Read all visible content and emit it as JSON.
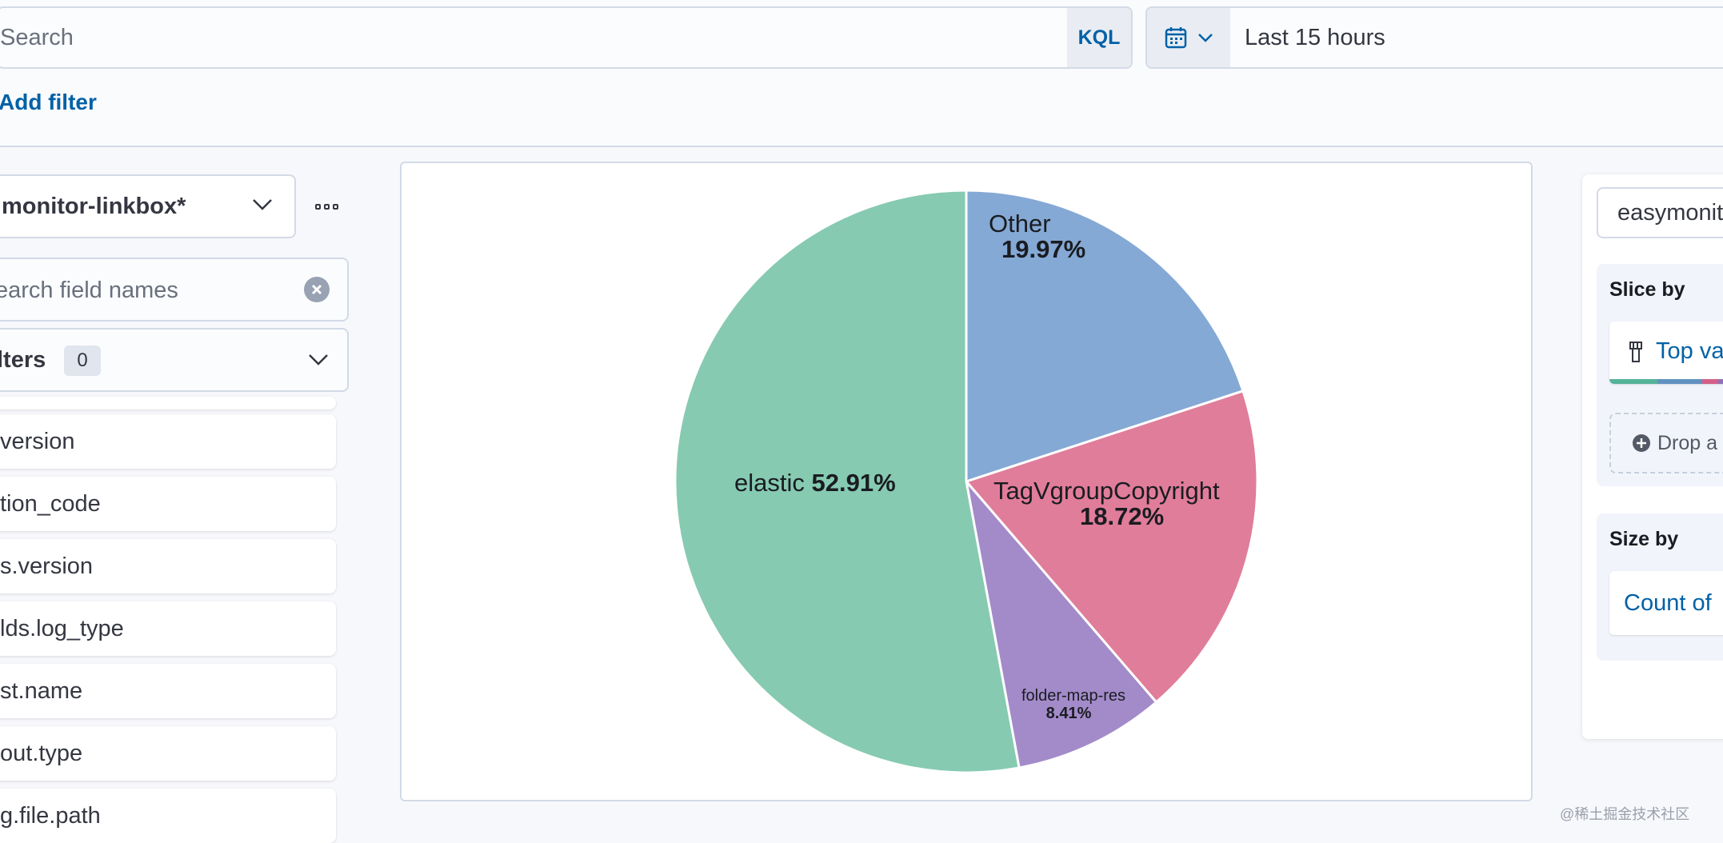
{
  "query_bar": {
    "search_placeholder": "Search",
    "language": "KQL",
    "date_range": "Last 15 hours",
    "add_filter": "Add filter"
  },
  "left_panel": {
    "index_pattern": "monitor-linkbox*",
    "field_search_placeholder": "earch field names",
    "filters_label": "lters",
    "filters_count": "0",
    "fields": [
      "version",
      "tion_code",
      "s.version",
      "lds.log_type",
      "st.name",
      "out.type",
      "g.file.path"
    ]
  },
  "chart_data": {
    "type": "pie",
    "slices": [
      {
        "label": "Other",
        "percent": "19.97%",
        "value": 19.97,
        "color": "#85a9d5"
      },
      {
        "label": "TagVgroupCopyright",
        "percent": "18.72%",
        "value": 18.72,
        "color": "#e07d9a"
      },
      {
        "label": "folder-map-res",
        "percent": "8.41%",
        "value": 8.41,
        "color": "#a38bca"
      },
      {
        "label": "elastic",
        "percent": "52.91%",
        "value": 52.91,
        "color": "#86cab1"
      }
    ]
  },
  "right_panel": {
    "layer_index": "easymonit",
    "slice_by_title": "Slice by",
    "slice_by_value": "Top va",
    "drop_label": "Drop a",
    "size_by_title": "Size by",
    "size_by_value": "Count of"
  },
  "watermark": "@稀土掘金技术社区"
}
